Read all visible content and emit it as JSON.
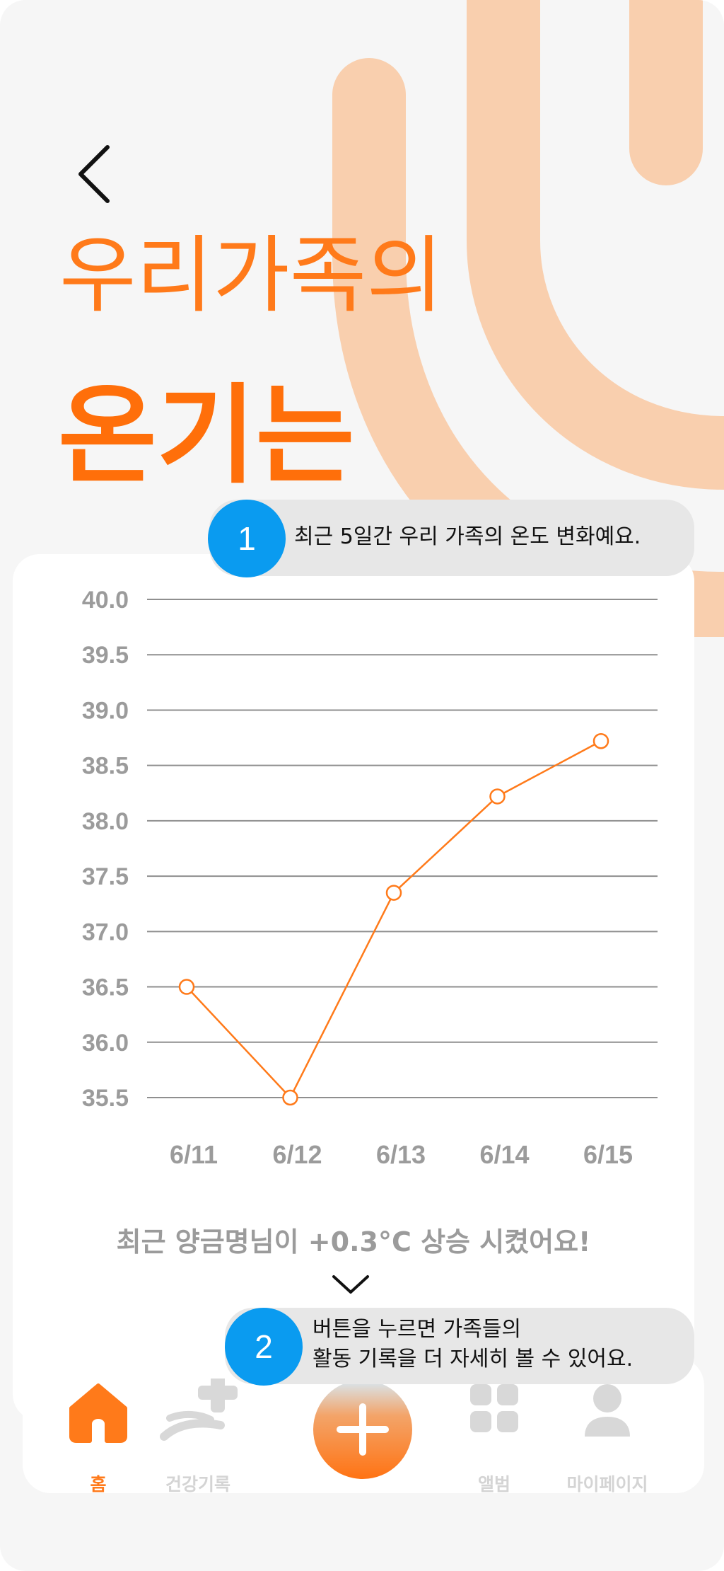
{
  "header": {
    "title_line1": "우리가족의",
    "title_line2": "온기는"
  },
  "icons": {
    "back": "chevron-left-icon",
    "expand": "chevron-down-icon",
    "home": "home-icon",
    "health": "health-record-icon",
    "add": "plus-icon",
    "album": "grid-album-icon",
    "mypage": "person-icon"
  },
  "colors": {
    "accent": "#ff7a1a",
    "badge_blue": "#0a9bf0",
    "decoration_peach": "#f9cfae",
    "tooltip_bg": "#e7e7e7",
    "muted_text": "#9b9b9b",
    "inactive_nav": "#d4d4d4"
  },
  "tooltips": [
    {
      "number": "1",
      "lines": [
        "최근 5일간 우리 가족의 온도 변화예요."
      ]
    },
    {
      "number": "2",
      "lines": [
        "버튼을 누르면 가족들의",
        "활동 기록을 더 자세히 볼 수 있어요."
      ]
    }
  ],
  "chart_data": {
    "type": "line",
    "categories": [
      "6/11",
      "6/12",
      "6/13",
      "6/14",
      "6/15"
    ],
    "series": [
      {
        "values": [
          36.5,
          35.5,
          37.35,
          38.22,
          38.72
        ]
      }
    ],
    "y_ticks": [
      "40.0",
      "39.5",
      "39.0",
      "38.5",
      "38.0",
      "37.5",
      "37.0",
      "36.5",
      "36.0",
      "35.5"
    ],
    "ylim": [
      35.5,
      40.0
    ],
    "grid": true,
    "legend": "none",
    "line_color": "#ff7a1a",
    "grid_color": "#8f8f8f",
    "label_color": "#9b9b9b"
  },
  "summary": "최근 양금명님이 +0.3°C 상승 시켰어요!",
  "nav": {
    "items": [
      {
        "label": "홈"
      },
      {
        "label": "건강기록"
      },
      {
        "label": "앨범"
      },
      {
        "label": "마이페이지"
      }
    ],
    "active_index": 0
  }
}
